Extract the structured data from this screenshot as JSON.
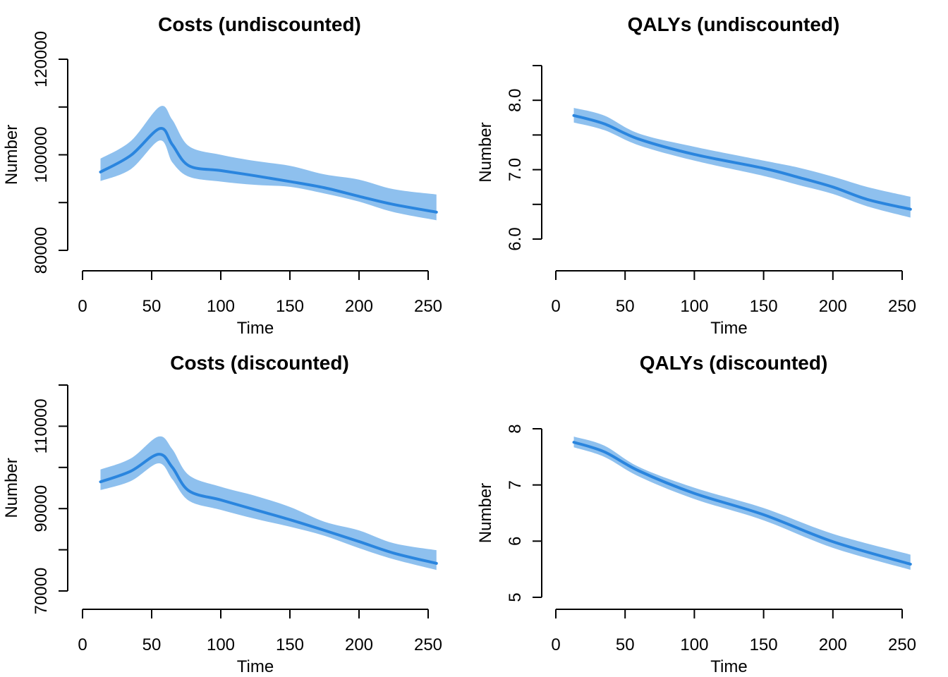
{
  "colors": {
    "band": "#8EC0EE",
    "line": "#2A85DE",
    "axis": "#000000"
  },
  "chart_data": [
    {
      "id": "costs-undiscounted",
      "type": "area",
      "title": "Costs (undiscounted)",
      "xlabel": "Time",
      "ylabel": "Number",
      "xlim": [
        0,
        250
      ],
      "ylim": [
        80000,
        120000
      ],
      "x_ticks": [
        0,
        50,
        100,
        150,
        200,
        250
      ],
      "x_tick_labels": [
        "0",
        "50",
        "100",
        "150",
        "200",
        "250"
      ],
      "y_ticks": [
        80000,
        90000,
        100000,
        110000,
        120000
      ],
      "y_tick_labels": [
        "80000",
        "",
        "100000",
        "",
        "120000"
      ],
      "grid": false,
      "x": [
        13,
        35,
        56,
        65,
        77,
        100,
        125,
        150,
        175,
        200,
        225,
        256
      ],
      "series": [
        {
          "name": "mean",
          "values": [
            96400,
            99900,
            105500,
            102100,
            97700,
            96700,
            95600,
            94400,
            93100,
            91300,
            89600,
            88000
          ]
        },
        {
          "name": "upper",
          "values": [
            99200,
            102900,
            110100,
            107300,
            101800,
            100000,
            98700,
            97700,
            95900,
            94800,
            92800,
            91700
          ]
        },
        {
          "name": "lower",
          "values": [
            94500,
            97000,
            103000,
            98400,
            95400,
            94400,
            93700,
            93300,
            91900,
            90200,
            88000,
            86300
          ]
        }
      ]
    },
    {
      "id": "qalys-undiscounted",
      "type": "area",
      "title": "QALYs (undiscounted)",
      "xlabel": "Time",
      "ylabel": "Number",
      "xlim": [
        0,
        250
      ],
      "ylim": [
        6.0,
        8.5
      ],
      "x_ticks": [
        0,
        50,
        100,
        150,
        200,
        250
      ],
      "x_tick_labels": [
        "0",
        "50",
        "100",
        "150",
        "200",
        "250"
      ],
      "y_ticks": [
        6.0,
        6.5,
        7.0,
        7.5,
        8.0,
        8.5
      ],
      "y_tick_labels": [
        "6.0",
        "",
        "7.0",
        "",
        "8.0",
        ""
      ],
      "grid": false,
      "x": [
        13,
        35,
        60,
        100,
        150,
        175,
        200,
        225,
        256
      ],
      "series": [
        {
          "name": "mean",
          "values": [
            7.78,
            7.66,
            7.44,
            7.22,
            7.02,
            6.89,
            6.75,
            6.57,
            6.43
          ]
        },
        {
          "name": "upper",
          "values": [
            7.89,
            7.78,
            7.52,
            7.33,
            7.13,
            7.03,
            6.9,
            6.75,
            6.61
          ]
        },
        {
          "name": "lower",
          "values": [
            7.68,
            7.57,
            7.35,
            7.13,
            6.91,
            6.78,
            6.65,
            6.47,
            6.31
          ]
        }
      ]
    },
    {
      "id": "costs-discounted",
      "type": "area",
      "title": "Costs (discounted)",
      "xlabel": "Time",
      "ylabel": "Number",
      "xlim": [
        0,
        250
      ],
      "ylim": [
        70000,
        120000
      ],
      "x_ticks": [
        0,
        50,
        100,
        150,
        200,
        250
      ],
      "x_tick_labels": [
        "0",
        "50",
        "100",
        "150",
        "200",
        "250"
      ],
      "y_ticks": [
        70000,
        80000,
        90000,
        100000,
        110000,
        120000
      ],
      "y_tick_labels": [
        "70000",
        "",
        "90000",
        "",
        "110000",
        ""
      ],
      "grid": false,
      "x": [
        13,
        35,
        55,
        65,
        77,
        100,
        125,
        150,
        175,
        200,
        225,
        256
      ],
      "series": [
        {
          "name": "mean",
          "values": [
            96500,
            99100,
            103200,
            100000,
            94300,
            92100,
            89700,
            87300,
            84700,
            82000,
            79200,
            76700
          ]
        },
        {
          "name": "upper",
          "values": [
            99500,
            102200,
            107500,
            104400,
            98100,
            95300,
            93100,
            90400,
            86800,
            84700,
            81600,
            79900
          ]
        },
        {
          "name": "lower",
          "values": [
            94500,
            96700,
            101000,
            97100,
            91900,
            89700,
            87500,
            85600,
            83400,
            80400,
            77700,
            75100
          ]
        }
      ]
    },
    {
      "id": "qalys-discounted",
      "type": "area",
      "title": "QALYs (discounted)",
      "xlabel": "Time",
      "ylabel": "Number",
      "xlim": [
        0,
        250
      ],
      "ylim": [
        5,
        8
      ],
      "x_ticks": [
        0,
        50,
        100,
        150,
        200,
        250
      ],
      "x_tick_labels": [
        "0",
        "50",
        "100",
        "150",
        "200",
        "250"
      ],
      "y_ticks": [
        5,
        6,
        7,
        8
      ],
      "y_tick_labels": [
        "5",
        "6",
        "7",
        "8"
      ],
      "grid": false,
      "x": [
        13,
        35,
        60,
        100,
        150,
        200,
        256
      ],
      "series": [
        {
          "name": "mean",
          "values": [
            7.76,
            7.59,
            7.25,
            6.85,
            6.47,
            5.99,
            5.59
          ]
        },
        {
          "name": "upper",
          "values": [
            7.86,
            7.7,
            7.32,
            6.95,
            6.59,
            6.13,
            5.76
          ]
        },
        {
          "name": "lower",
          "values": [
            7.67,
            7.5,
            7.15,
            6.75,
            6.37,
            5.88,
            5.49
          ]
        }
      ]
    }
  ]
}
